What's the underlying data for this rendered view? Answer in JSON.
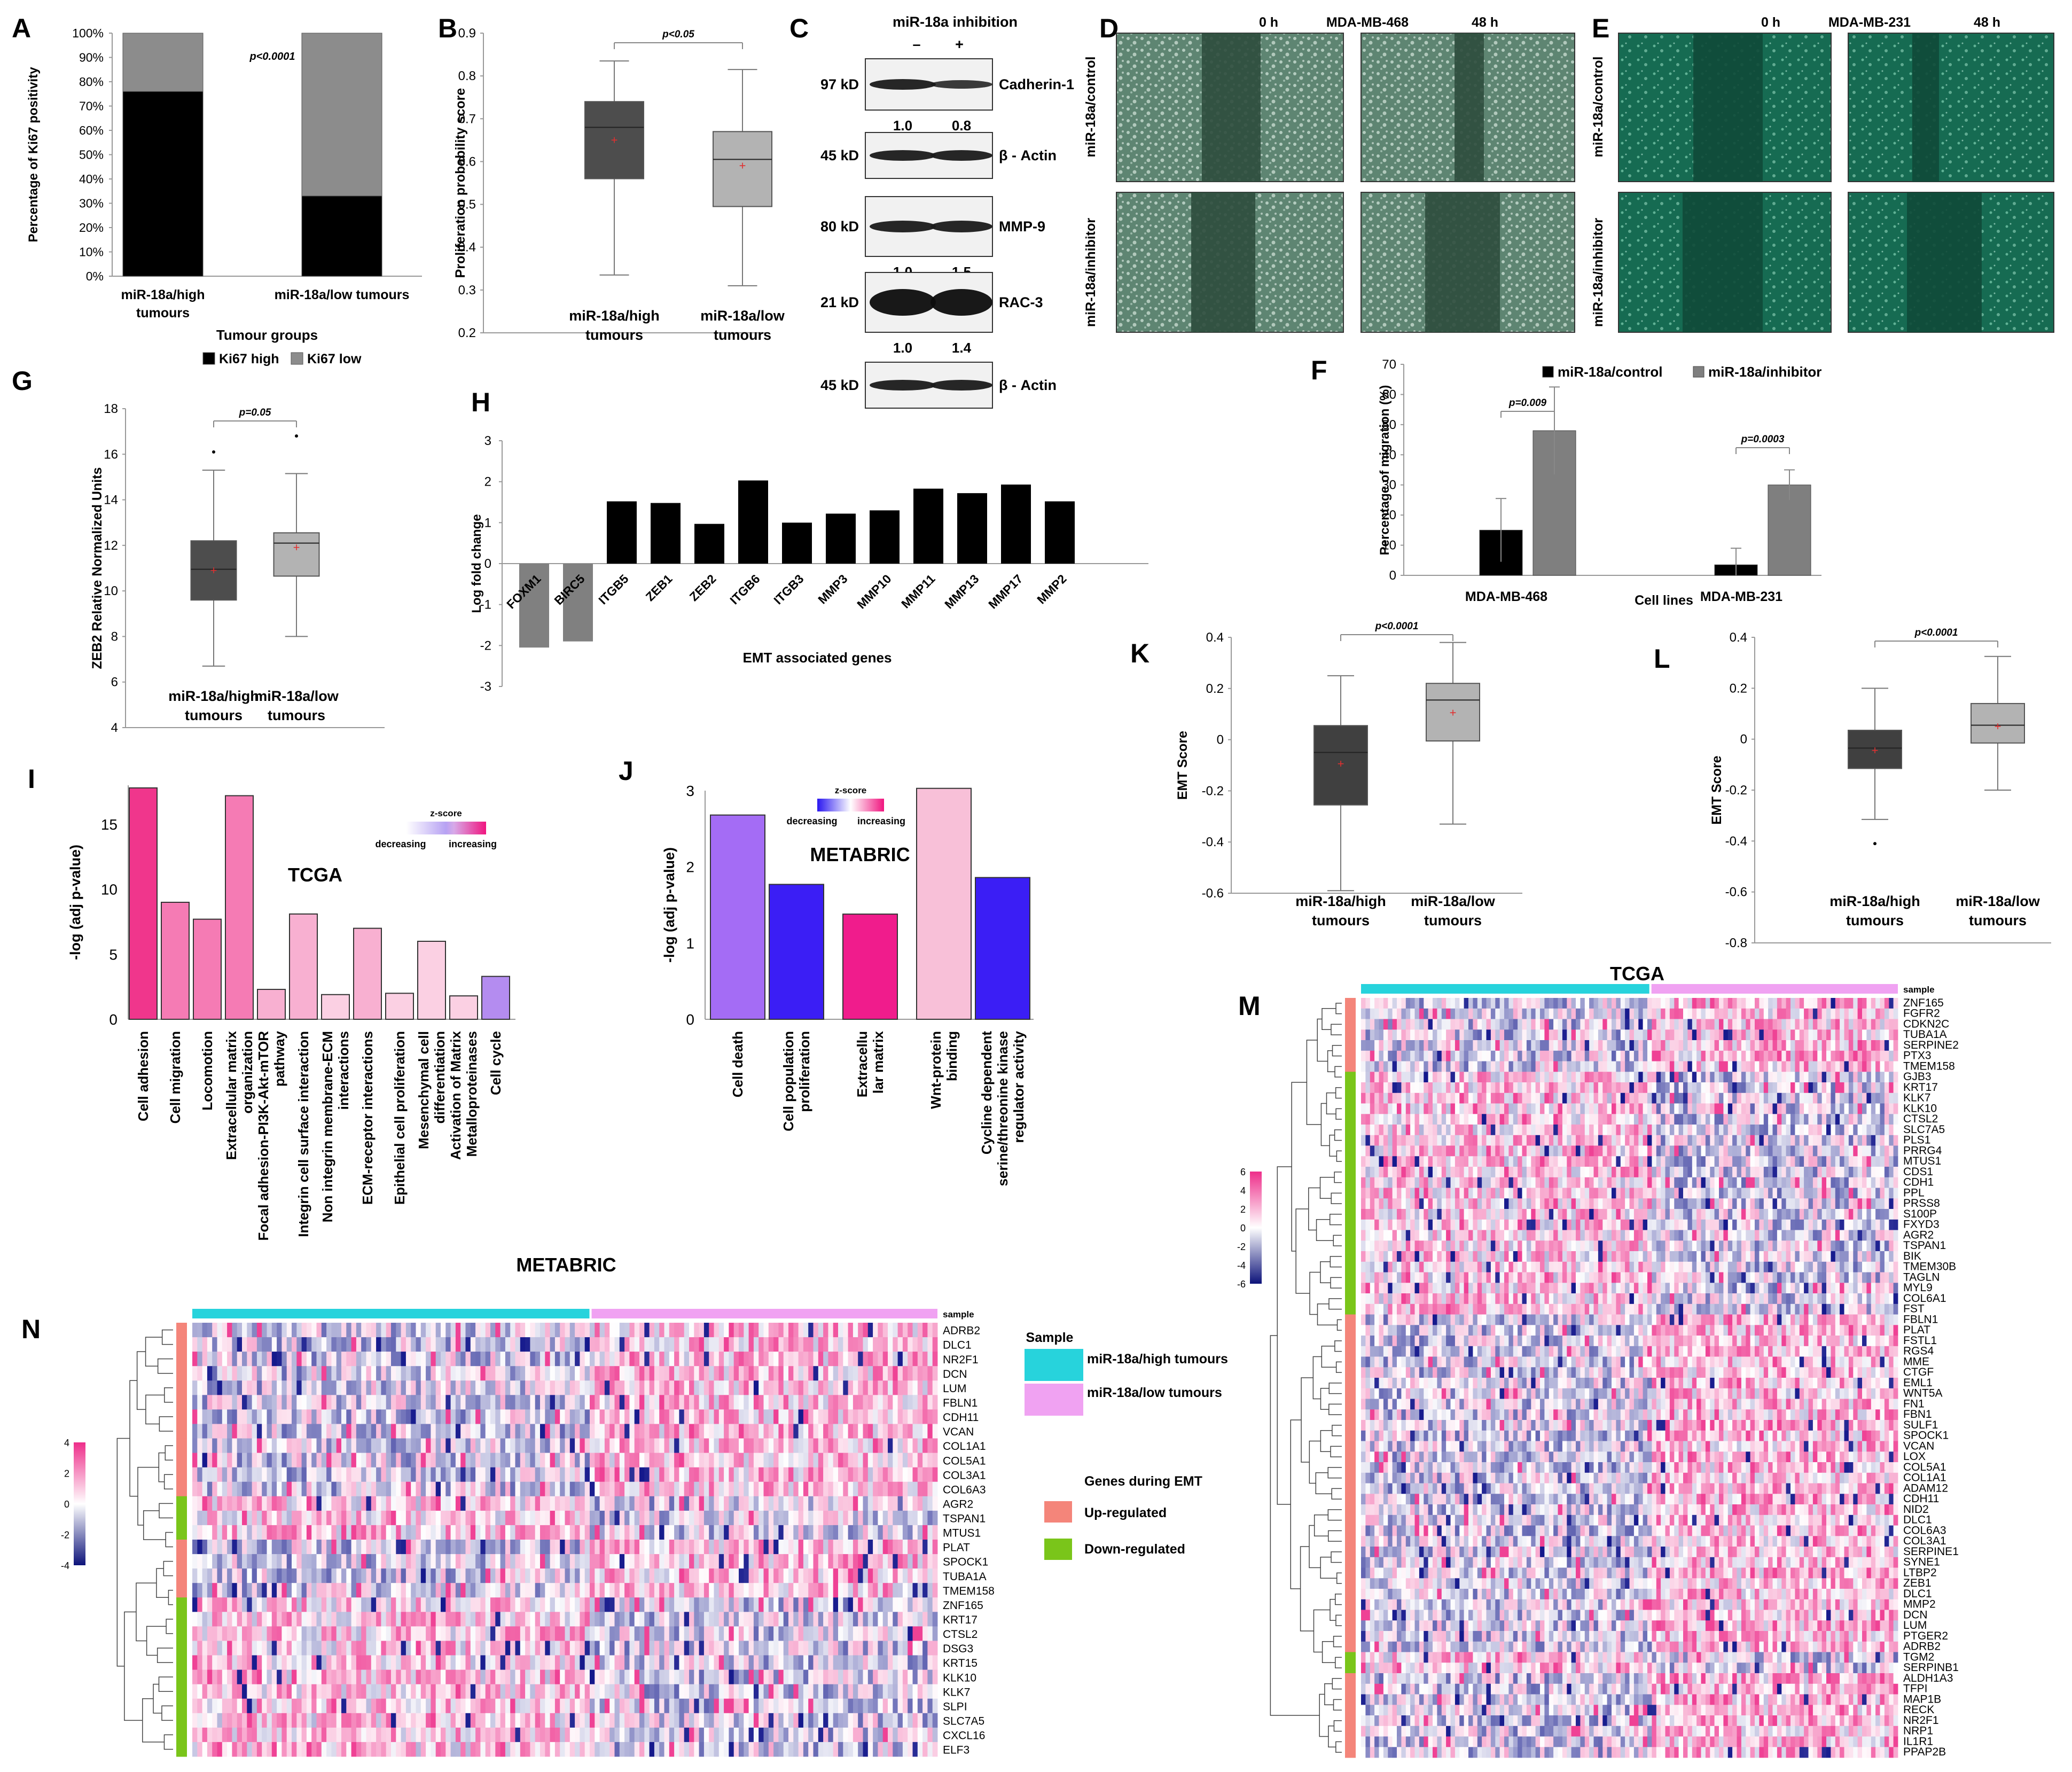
{
  "panel_labels": [
    "A",
    "B",
    "C",
    "D",
    "E",
    "F",
    "G",
    "H",
    "I",
    "J",
    "K",
    "L",
    "M",
    "N"
  ],
  "panelA": {
    "chart_data": {
      "type": "bar",
      "stacked": true,
      "categories": [
        "miR-18a/high tumours",
        "miR-18a/low tumours"
      ],
      "series": [
        {
          "name": "Ki67 high",
          "values": [
            76,
            33
          ],
          "color": "#000000"
        },
        {
          "name": "Ki67 low",
          "values": [
            24,
            67
          ],
          "color": "#8c8c8c"
        }
      ],
      "xlabel": "Tumour groups",
      "ylabel": "Percentage of Ki67 positivity",
      "ylim": [
        0,
        100
      ],
      "yticks": [
        "0%",
        "10%",
        "20%",
        "30%",
        "40%",
        "50%",
        "60%",
        "70%",
        "80%",
        "90%",
        "100%"
      ],
      "annotation": "p<0.0001",
      "cat_lines": [
        [
          "miR-18a/high",
          "tumours"
        ],
        [
          "miR-18a/low tumours"
        ]
      ]
    }
  },
  "panelB": {
    "chart_data": {
      "type": "box",
      "categories": [
        "miR-18a/high tumours",
        "miR-18a/low tumours"
      ],
      "cat_lines": [
        [
          "miR-18a/high",
          "tumours"
        ],
        [
          "miR-18a/low",
          "tumours"
        ]
      ],
      "boxes": [
        {
          "min": 0.335,
          "q1": 0.56,
          "median": 0.68,
          "q3": 0.74,
          "max": 0.835,
          "mean": 0.65,
          "color": "#4d4d4d",
          "outliers": []
        },
        {
          "min": 0.31,
          "q1": 0.495,
          "median": 0.605,
          "q3": 0.67,
          "max": 0.815,
          "mean": 0.59,
          "color": "#b3b3b3",
          "outliers": []
        }
      ],
      "ylabel": "Proliferation probability score",
      "ylim": [
        0.2,
        0.9
      ],
      "yticks": [
        "0.2",
        "0.3",
        "0.4",
        "0.5",
        "0.6",
        "0.7",
        "0.8",
        "0.9"
      ],
      "annotation": "p<0.05"
    }
  },
  "panelC": {
    "title": "miR-18a inhibition",
    "lanes": [
      "–",
      "+"
    ],
    "blots": [
      {
        "size": "97 kD",
        "name": "Cadherin-1",
        "quant": [
          "1.0",
          "0.8"
        ]
      },
      {
        "size": "45 kD",
        "name": "β - Actin",
        "quant": null
      },
      {
        "size": "80 kD",
        "name": "MMP-9",
        "quant": [
          "1.0",
          "1.5"
        ]
      },
      {
        "size": "21 kD",
        "name": "RAC-3",
        "quant": [
          "1.0",
          "1.4"
        ]
      },
      {
        "size": "45 kD",
        "name": "β - Actin",
        "quant": null
      }
    ]
  },
  "panelD": {
    "cell": "MDA-MB-468",
    "time0": "0 h",
    "time48": "48 h",
    "row1": "miR-18a/control",
    "row2": "miR-18a/inhibitor"
  },
  "panelE": {
    "cell": "MDA-MB-231",
    "time0": "0 h",
    "time48": "48 h",
    "row1": "miR-18a/control",
    "row2": "miR-18a/inhibitor"
  },
  "panelF": {
    "chart_data": {
      "type": "bar",
      "categories": [
        "MDA-MB-468",
        "MDA-MB-231"
      ],
      "series": [
        {
          "name": "miR-18a/control",
          "values": [
            15,
            3.5
          ],
          "err": [
            10.5,
            5.5
          ],
          "color": "#000000"
        },
        {
          "name": "miR-18a/inhibitor",
          "values": [
            48,
            30
          ],
          "err": [
            14.5,
            5
          ],
          "color": "#7f7f7f"
        }
      ],
      "xlabel": "Cell lines",
      "ylabel": "Percentage of migration (%)",
      "ylim": [
        0,
        70
      ],
      "yticks": [
        "0",
        "10",
        "20",
        "30",
        "40",
        "50",
        "60",
        "70"
      ],
      "annotations": [
        "p=0.009",
        "p=0.0003"
      ]
    }
  },
  "panelG": {
    "chart_data": {
      "type": "box",
      "categories": [
        "miR-18a/high tumours",
        "miR-18a/low tumours"
      ],
      "cat_lines": [
        [
          "miR-18a/high",
          "tumours"
        ],
        [
          "miR-18a/low",
          "tumours"
        ]
      ],
      "boxes": [
        {
          "min": 6.7,
          "q1": 9.6,
          "median": 10.95,
          "q3": 12.2,
          "max": 15.3,
          "mean": 10.9,
          "color": "#4d4d4d",
          "outliers": [
            16.1
          ]
        },
        {
          "min": 8.0,
          "q1": 10.65,
          "median": 12.1,
          "q3": 12.55,
          "max": 15.15,
          "mean": 11.9,
          "color": "#b3b3b3",
          "outliers": [
            16.8
          ]
        }
      ],
      "ylabel": "ZEB2 Relative Normalized Units",
      "ylim": [
        4,
        18
      ],
      "yticks": [
        "4",
        "6",
        "8",
        "10",
        "12",
        "14",
        "16",
        "18"
      ],
      "annotation": "p=0.05"
    }
  },
  "panelH": {
    "chart_data": {
      "type": "bar",
      "categories": [
        "FOXM1",
        "BIRC5",
        "ITGB5",
        "ZEB1",
        "ZEB2",
        "ITGB6",
        "ITGB3",
        "MMP3",
        "MMP10",
        "MMP11",
        "MMP13",
        "MMP17",
        "MMP2"
      ],
      "values": [
        -2.05,
        -1.9,
        1.52,
        1.48,
        0.97,
        2.03,
        1.0,
        1.22,
        1.3,
        1.83,
        1.72,
        1.93,
        1.52
      ],
      "colors": [
        "#808080",
        "#808080",
        "#000000",
        "#000000",
        "#000000",
        "#000000",
        "#000000",
        "#000000",
        "#000000",
        "#000000",
        "#000000",
        "#000000",
        "#000000"
      ],
      "xlabel": "EMT associated genes",
      "ylabel": "Log fold change",
      "ylim": [
        -3,
        3
      ],
      "yticks": [
        "-3",
        "-2",
        "-1",
        "0",
        "1",
        "2",
        "3"
      ]
    }
  },
  "panelI": {
    "chart_data": {
      "type": "bar",
      "title": "TCGA",
      "categories": [
        "Cell adhesion",
        "Cell migration",
        "Locomotion",
        "Extracellular matrix organization",
        "Focal adhesion-PI3K-Akt-mTOR pathway",
        "Integrin cell surface interaction",
        "Non integrin membrane-ECM interactions",
        "ECM-receptor interactions",
        "Epithelial cell proliferation",
        "Mesenchymal cell differentiation",
        "Activation of Matrix Metalloproteinases",
        "Cell cycle"
      ],
      "cat_lines": [
        [
          "Cell adhesion"
        ],
        [
          "Cell migration"
        ],
        [
          "Locomotion"
        ],
        [
          "Extracellular matrix",
          "organization"
        ],
        [
          "Focal adhesion-PI3K-Akt-mTOR",
          "pathway"
        ],
        [
          "Integrin cell surface interaction"
        ],
        [
          "Non integrin membrane-ECM",
          "interactions"
        ],
        [
          "ECM-receptor interactions"
        ],
        [
          "Epithelial cell proliferation"
        ],
        [
          "Mesenchymal cell",
          "differentiation"
        ],
        [
          "Activation of Matrix",
          "Metalloproteinases"
        ],
        [
          "Cell cycle"
        ]
      ],
      "values": [
        17.8,
        9.0,
        7.7,
        17.2,
        2.3,
        8.1,
        1.9,
        7.0,
        2.0,
        6.0,
        1.8,
        3.3
      ],
      "colors": [
        "#f0368c",
        "#f57bb4",
        "#f57bb4",
        "#f57bb4",
        "#f8b0d1",
        "#f8b0d1",
        "#fbd0e3",
        "#f8b0d1",
        "#fbd0e3",
        "#fbd0e3",
        "#fbd0e3",
        "#b48cf0"
      ],
      "ylabel": "-log (adj p-value)",
      "ylim": [
        0,
        18
      ],
      "yticks": [
        "0",
        "5",
        "10",
        "15"
      ],
      "legend": {
        "title": "z-score",
        "low": "decreasing",
        "high": "increasing"
      }
    }
  },
  "panelJ": {
    "chart_data": {
      "type": "bar",
      "title": "METABRIC",
      "categories": [
        "Cell death",
        "Cell population proliferation",
        "Extracellular matrix",
        "Wnt-protein binding",
        "Cycline dependent serine/threonine kinase regulator activity"
      ],
      "cat_lines": [
        [
          "Cell death"
        ],
        [
          "Cell population",
          "proliferation"
        ],
        [
          "Extracellu",
          "lar matrix"
        ],
        [
          "Wnt-protein",
          "binding"
        ],
        [
          "Cycline dependent",
          "serine/threonine kinase",
          "regulator activity"
        ]
      ],
      "values": [
        2.68,
        1.77,
        1.38,
        3.03,
        1.86
      ],
      "colors": [
        "#a46cf5",
        "#3b1ef5",
        "#f01c8c",
        "#f8c0d8",
        "#3b1ef5"
      ],
      "ylabel": "-log (adj p-value)",
      "ylim": [
        0,
        3
      ],
      "yticks": [
        "0",
        "1",
        "2",
        "3"
      ],
      "legend": {
        "title": "z-score",
        "low": "decreasing",
        "high": "increasing"
      }
    }
  },
  "panelK": {
    "chart_data": {
      "type": "box",
      "categories": [
        "miR-18a/high tumours",
        "miR-18a/low tumours"
      ],
      "cat_lines": [
        [
          "miR-18a/high",
          "tumours"
        ],
        [
          "miR-18a/low",
          "tumours"
        ]
      ],
      "boxes": [
        {
          "min": -0.59,
          "q1": -0.255,
          "median": -0.05,
          "q3": 0.055,
          "max": 0.25,
          "mean": -0.095,
          "color": "#404040",
          "outliers": []
        },
        {
          "min": -0.33,
          "q1": -0.005,
          "median": 0.155,
          "q3": 0.22,
          "max": 0.38,
          "mean": 0.105,
          "color": "#b3b3b3",
          "outliers": []
        }
      ],
      "ylabel": "EMT Score",
      "ylim": [
        -0.6,
        0.4
      ],
      "yticks": [
        "-0.6",
        "-0.4",
        "-0.2",
        "0",
        "0.2",
        "0.4"
      ],
      "annotation": "p<0.0001"
    }
  },
  "panelL": {
    "chart_data": {
      "type": "box",
      "categories": [
        "miR-18a/high tumours",
        "miR-18a/low tumours"
      ],
      "cat_lines": [
        [
          "miR-18a/high",
          "tumours"
        ],
        [
          "miR-18a/low",
          "tumours"
        ]
      ],
      "boxes": [
        {
          "min": -0.315,
          "q1": -0.115,
          "median": -0.035,
          "q3": 0.035,
          "max": 0.2,
          "mean": -0.045,
          "color": "#404040",
          "outliers": [
            -0.41
          ]
        },
        {
          "min": -0.2,
          "q1": -0.015,
          "median": 0.055,
          "q3": 0.14,
          "max": 0.325,
          "mean": 0.05,
          "color": "#b3b3b3",
          "outliers": []
        }
      ],
      "ylabel": "EMT Score",
      "ylim": [
        -0.8,
        0.4
      ],
      "yticks": [
        "-0.8",
        "-0.6",
        "-0.4",
        "-0.2",
        "0",
        "0.2",
        "0.4"
      ],
      "annotation": "p<0.0001"
    }
  },
  "panelM": {
    "title": "TCGA",
    "sample_label": "sample",
    "scale": [
      "6",
      "4",
      "2",
      "0",
      "-2",
      "-4",
      "-6"
    ],
    "genes": [
      "ZNF165",
      "FGFR2",
      "CDKN2C",
      "TUBA1A",
      "SERPINE2",
      "PTX3",
      "TMEM158",
      "GJB3",
      "KRT17",
      "KLK7",
      "KLK10",
      "CTSL2",
      "SLC7A5",
      "PLS1",
      "PRRG4",
      "MTUS1",
      "CDS1",
      "CDH1",
      "PPL",
      "PRSS8",
      "S100P",
      "FXYD3",
      "AGR2",
      "TSPAN1",
      "BIK",
      "TMEM30B",
      "TAGLN",
      "MYL9",
      "COL6A1",
      "FST",
      "FBLN1",
      "PLAT",
      "FSTL1",
      "RGS4",
      "MME",
      "CTGF",
      "EML1",
      "WNT5A",
      "FN1",
      "FBN1",
      "SULF1",
      "SPOCK1",
      "VCAN",
      "LOX",
      "COL5A1",
      "COL1A1",
      "ADAM12",
      "CDH11",
      "NID2",
      "DLC1",
      "COL6A3",
      "COL3A1",
      "SERPINE1",
      "SYNE1",
      "LTBP2",
      "ZEB1",
      "DLC1",
      "MMP2",
      "DCN",
      "LUM",
      "PTGER2",
      "ADRB2",
      "TGM2",
      "SERPINB1",
      "ALDH1A3",
      "TFPI",
      "MAP1B",
      "RECK",
      "NR2F1",
      "NRP1",
      "IL1R1",
      "PPAP2B"
    ],
    "gene_types": "UUUUUUUDDDDDDDDDDDDDDDDDDDDDDDUUUUUUUUUUUUUUUUUUUUUUUUUUUUUUUUDDUUUUUUUU"
  },
  "panelN": {
    "title": "METABRIC",
    "sample_label": "sample",
    "scale": [
      "4",
      "2",
      "0",
      "-2",
      "-4"
    ],
    "genes": [
      "ADRB2",
      "DLC1",
      "NR2F1",
      "DCN",
      "LUM",
      "FBLN1",
      "CDH11",
      "VCAN",
      "COL1A1",
      "COL5A1",
      "COL3A1",
      "COL6A3",
      "AGR2",
      "TSPAN1",
      "MTUS1",
      "PLAT",
      "SPOCK1",
      "TUBA1A",
      "TMEM158",
      "ZNF165",
      "KRT17",
      "CTSL2",
      "DSG3",
      "KRT15",
      "KLK10",
      "KLK7",
      "SLPI",
      "SLC7A5",
      "CXCL16",
      "ELF3"
    ],
    "gene_types": "UUUUUUUUUUUUDDDUUUUDDDDDDDDDDD"
  },
  "legend_heatmap": {
    "sample_title": "Sample",
    "high": "miR-18a/high tumours",
    "low": "miR-18a/low tumours",
    "genes_title": "Genes during EMT",
    "up": "Up-regulated",
    "down": "Down-regulated",
    "colors": {
      "high": "#27d3dc",
      "low": "#f0a2f2",
      "up": "#f4857a",
      "down": "#7ac51a"
    }
  }
}
